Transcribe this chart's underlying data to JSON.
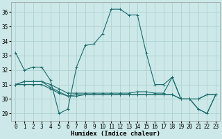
{
  "xlabel": "Humidex (Indice chaleur)",
  "bg_color": "#cce8e8",
  "line_color": "#1a6b6b",
  "xlim": [
    -0.5,
    23.5
  ],
  "ylim": [
    28.5,
    36.7
  ],
  "xticks": [
    0,
    1,
    2,
    3,
    4,
    5,
    6,
    7,
    8,
    9,
    10,
    11,
    12,
    13,
    14,
    15,
    16,
    17,
    18,
    19,
    20,
    21,
    22,
    23
  ],
  "yticks": [
    29,
    30,
    31,
    32,
    33,
    34,
    35,
    36
  ],
  "lines": [
    {
      "x": [
        0,
        1,
        2,
        3,
        4,
        5,
        6,
        7,
        8,
        9,
        10,
        11,
        12,
        13,
        14,
        15,
        16,
        17,
        18,
        19,
        20,
        21,
        22,
        23
      ],
      "y": [
        33.2,
        32.0,
        32.2,
        32.2,
        31.3,
        29.0,
        29.3,
        32.2,
        33.7,
        33.8,
        34.5,
        36.2,
        36.2,
        35.8,
        35.8,
        33.2,
        31.0,
        31.0,
        31.5,
        30.0,
        30.0,
        29.3,
        29.0,
        30.3
      ]
    },
    {
      "x": [
        0,
        1,
        2,
        3,
        4,
        5,
        6,
        7,
        8,
        9,
        10,
        11,
        12,
        13,
        14,
        15,
        16,
        17,
        18,
        19,
        20,
        21,
        22,
        23
      ],
      "y": [
        31.0,
        31.2,
        31.2,
        31.2,
        31.0,
        30.7,
        30.4,
        30.4,
        30.4,
        30.4,
        30.4,
        30.4,
        30.4,
        30.4,
        30.5,
        30.5,
        30.4,
        30.4,
        31.5,
        30.0,
        30.0,
        30.0,
        30.3,
        30.3
      ]
    },
    {
      "x": [
        0,
        1,
        2,
        3,
        4,
        5,
        6,
        7,
        8,
        9,
        10,
        11,
        12,
        13,
        14,
        15,
        16,
        17,
        18,
        19,
        20,
        21,
        22,
        23
      ],
      "y": [
        31.0,
        31.2,
        31.2,
        31.2,
        30.8,
        30.5,
        30.2,
        30.3,
        30.3,
        30.3,
        30.3,
        30.3,
        30.3,
        30.3,
        30.3,
        30.3,
        30.3,
        30.3,
        30.3,
        30.0,
        30.0,
        30.0,
        30.3,
        30.3
      ]
    },
    {
      "x": [
        0,
        1,
        2,
        3,
        4,
        5,
        6,
        7,
        8,
        9,
        10,
        11,
        12,
        13,
        14,
        15,
        16,
        17,
        18,
        19,
        20,
        21,
        22,
        23
      ],
      "y": [
        31.0,
        31.0,
        31.0,
        31.0,
        30.7,
        30.4,
        30.2,
        30.2,
        30.3,
        30.3,
        30.3,
        30.3,
        30.3,
        30.3,
        30.3,
        30.3,
        30.3,
        30.3,
        30.3,
        30.0,
        30.0,
        29.3,
        29.0,
        30.3
      ]
    }
  ],
  "grid_color": "#aacece",
  "label_fontsize": 6.5,
  "tick_fontsize": 5.5
}
